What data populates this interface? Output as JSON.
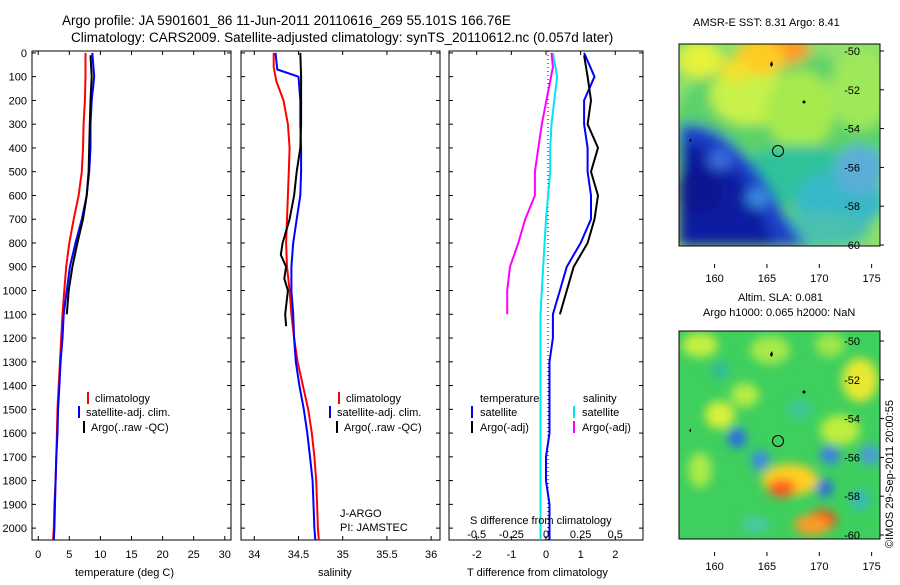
{
  "title_line1": "Argo profile: JA 5901601_86 11-Jun-2011 20110616_269 55.101S 166.76E",
  "title_line2": "Climatology: CARS2009. Satellite-adjusted climatology: synTS_20110612.nc (0.057d later)",
  "colors": {
    "climatology": "#ff0000",
    "satellite": "#0000ff",
    "argo": "#000000",
    "sat_sal": "#00e5ee",
    "argo_sal": "#ff00ff"
  },
  "depth_ticks": [
    "0",
    "100",
    "200",
    "300",
    "400",
    "500",
    "600",
    "700",
    "800",
    "900",
    "1000",
    "1100",
    "1200",
    "1300",
    "1400",
    "1500",
    "1600",
    "1700",
    "1800",
    "1900",
    "2000"
  ],
  "panel_temp": {
    "xlabel": "temperature (deg C)",
    "xticks": [
      "0",
      "5",
      "10",
      "15",
      "20",
      "25",
      "30"
    ],
    "legend": [
      "climatology",
      "satellite-adj. clim.",
      "Argo(..raw -QC)"
    ]
  },
  "panel_sal": {
    "xlabel": "salinity",
    "xticks": [
      "34",
      "34.5",
      "35",
      "35.5",
      "36"
    ],
    "legend": [
      "climatology",
      "satellite-adj. clim.",
      "Argo(..raw -QC)"
    ],
    "note1": "J-ARGO",
    "note2": "PI: JAMSTEC"
  },
  "panel_diff": {
    "xlabel_bottom": "T difference from climatology",
    "xlabel_top": "S difference from climatology",
    "xticks_T": [
      "-2",
      "-1",
      "0",
      "1",
      "2"
    ],
    "xticks_S": [
      "-0.5",
      "-0.25",
      "0",
      "0.25",
      "0.5"
    ],
    "legend_head_T": "temperature",
    "legend_head_S": "salinity",
    "legend_T": [
      "satellite",
      "Argo(-adj)"
    ],
    "legend_S": [
      "satellite",
      "Argo(-adj)"
    ]
  },
  "map_sst": {
    "title": "AMSR-E SST: 8.31  Argo: 8.41",
    "yticks": [
      "-50",
      "-52",
      "-54",
      "-56",
      "-58",
      "-60"
    ],
    "xticks": [
      "160",
      "165",
      "170",
      "175"
    ]
  },
  "map_sla": {
    "title1": "Altim. SLA: 0.081",
    "title2": "Argo h1000: 0.065 h2000: NaN",
    "yticks": [
      "-50",
      "-52",
      "-54",
      "-56",
      "-58",
      "-60"
    ],
    "xticks": [
      "160",
      "165",
      "170",
      "175"
    ]
  },
  "credit": "©IMOS 29-Sep-2011 20:00:55",
  "chart_data": [
    {
      "type": "line",
      "xlabel": "temperature (deg C)",
      "ylabel": "",
      "xlim": [
        -1,
        31
      ],
      "ylim": [
        2050,
        0
      ],
      "series": [
        {
          "name": "climatology",
          "color": "#ff0000",
          "points": [
            [
              7.6,
              0
            ],
            [
              7.6,
              100
            ],
            [
              7.5,
              200
            ],
            [
              7.3,
              300
            ],
            [
              7.2,
              400
            ],
            [
              7,
              500
            ],
            [
              6.5,
              600
            ],
            [
              5.7,
              700
            ],
            [
              5,
              800
            ],
            [
              4.5,
              900
            ],
            [
              4.2,
              1000
            ],
            [
              3.9,
              1100
            ],
            [
              3.7,
              1200
            ],
            [
              3.5,
              1300
            ],
            [
              3.3,
              1400
            ],
            [
              3.1,
              1500
            ],
            [
              3,
              1600
            ],
            [
              2.9,
              1700
            ],
            [
              2.8,
              1800
            ],
            [
              2.6,
              1900
            ],
            [
              2.5,
              2000
            ],
            [
              2.4,
              2050
            ]
          ]
        },
        {
          "name": "satellite-adj. clim.",
          "color": "#0000ff",
          "points": [
            [
              8.7,
              0
            ],
            [
              9,
              100
            ],
            [
              8.6,
              200
            ],
            [
              8.4,
              300
            ],
            [
              8.4,
              400
            ],
            [
              8.2,
              500
            ],
            [
              7.8,
              600
            ],
            [
              7,
              700
            ],
            [
              6,
              800
            ],
            [
              5.1,
              900
            ],
            [
              4.6,
              1000
            ],
            [
              4.1,
              1100
            ],
            [
              3.9,
              1200
            ],
            [
              3.6,
              1300
            ],
            [
              3.4,
              1400
            ],
            [
              3.2,
              1500
            ],
            [
              3.1,
              1600
            ],
            [
              2.9,
              1700
            ],
            [
              2.8,
              1800
            ],
            [
              2.7,
              1900
            ],
            [
              2.6,
              2000
            ],
            [
              2.5,
              2050
            ]
          ]
        },
        {
          "name": "Argo(..raw -QC)",
          "color": "#000000",
          "points": [
            [
              8.4,
              10
            ],
            [
              8.6,
              100
            ],
            [
              8.4,
              200
            ],
            [
              8.3,
              300
            ],
            [
              8.2,
              400
            ],
            [
              8.1,
              500
            ],
            [
              7.8,
              600
            ],
            [
              7.2,
              700
            ],
            [
              6.3,
              800
            ],
            [
              5.5,
              900
            ],
            [
              4.9,
              1000
            ],
            [
              4.6,
              1100
            ]
          ]
        }
      ]
    },
    {
      "type": "line",
      "xlabel": "salinity",
      "ylabel": "",
      "xlim": [
        33.85,
        36.1
      ],
      "ylim": [
        2050,
        0
      ],
      "series": [
        {
          "name": "climatology",
          "color": "#ff0000",
          "points": [
            [
              34.22,
              0
            ],
            [
              34.22,
              60
            ],
            [
              34.25,
              120
            ],
            [
              34.33,
              200
            ],
            [
              34.38,
              300
            ],
            [
              34.4,
              400
            ],
            [
              34.39,
              500
            ],
            [
              34.38,
              600
            ],
            [
              34.37,
              700
            ],
            [
              34.36,
              800
            ],
            [
              34.37,
              900
            ],
            [
              34.4,
              1000
            ],
            [
              34.42,
              1100
            ],
            [
              34.45,
              1200
            ],
            [
              34.49,
              1300
            ],
            [
              34.55,
              1400
            ],
            [
              34.61,
              1500
            ],
            [
              34.65,
              1600
            ],
            [
              34.68,
              1700
            ],
            [
              34.7,
              1800
            ],
            [
              34.71,
              1900
            ],
            [
              34.72,
              2000
            ],
            [
              34.73,
              2050
            ]
          ]
        },
        {
          "name": "satellite-adj. clim.",
          "color": "#0000ff",
          "points": [
            [
              34.24,
              0
            ],
            [
              34.26,
              70
            ],
            [
              34.5,
              100
            ],
            [
              34.52,
              200
            ],
            [
              34.52,
              300
            ],
            [
              34.53,
              400
            ],
            [
              34.53,
              500
            ],
            [
              34.52,
              600
            ],
            [
              34.48,
              700
            ],
            [
              34.44,
              800
            ],
            [
              34.42,
              900
            ],
            [
              34.42,
              1000
            ],
            [
              34.44,
              1100
            ],
            [
              34.45,
              1200
            ],
            [
              34.47,
              1300
            ],
            [
              34.51,
              1400
            ],
            [
              34.56,
              1500
            ],
            [
              34.6,
              1600
            ],
            [
              34.63,
              1700
            ],
            [
              34.66,
              1800
            ],
            [
              34.67,
              1900
            ],
            [
              34.68,
              2000
            ],
            [
              34.69,
              2050
            ]
          ]
        },
        {
          "name": "Argo(..raw -QC)",
          "color": "#000000",
          "points": [
            [
              34.52,
              0
            ],
            [
              34.53,
              100
            ],
            [
              34.53,
              200
            ],
            [
              34.53,
              300
            ],
            [
              34.52,
              400
            ],
            [
              34.48,
              500
            ],
            [
              34.45,
              600
            ],
            [
              34.4,
              700
            ],
            [
              34.32,
              800
            ],
            [
              34.3,
              850
            ],
            [
              34.36,
              900
            ],
            [
              34.34,
              950
            ],
            [
              34.38,
              1000
            ],
            [
              34.35,
              1100
            ],
            [
              34.36,
              1150
            ]
          ]
        }
      ]
    },
    {
      "type": "line",
      "xlabel": "T difference from climatology",
      "xlabel_top": "S difference from climatology",
      "ylabel": "",
      "xlim_T": [
        -2.8,
        2.8
      ],
      "xlim_S": [
        -0.7,
        0.7
      ],
      "ylim": [
        2050,
        0
      ],
      "series": [
        {
          "name": "satellite",
          "group": "temperature",
          "color": "#0000ff",
          "points": [
            [
              1.1,
              0
            ],
            [
              1.4,
              100
            ],
            [
              1.1,
              200
            ],
            [
              1.1,
              300
            ],
            [
              1.2,
              400
            ],
            [
              1.2,
              500
            ],
            [
              1.3,
              600
            ],
            [
              1.3,
              700
            ],
            [
              1,
              800
            ],
            [
              0.6,
              900
            ],
            [
              0.4,
              1000
            ],
            [
              0.2,
              1100
            ],
            [
              0.2,
              1200
            ],
            [
              0.1,
              1300
            ],
            [
              0.1,
              1400
            ],
            [
              0.1,
              1500
            ],
            [
              0.1,
              1600
            ],
            [
              0,
              1700
            ],
            [
              0,
              1800
            ],
            [
              0.1,
              1900
            ],
            [
              0.1,
              2000
            ],
            [
              0.1,
              2050
            ]
          ]
        },
        {
          "name": "Argo(-adj)",
          "group": "temperature",
          "color": "#000000",
          "points": [
            [
              1.1,
              10
            ],
            [
              1.2,
              100
            ],
            [
              1.3,
              200
            ],
            [
              1.2,
              300
            ],
            [
              1.5,
              400
            ],
            [
              1.3,
              500
            ],
            [
              1.5,
              600
            ],
            [
              1.4,
              700
            ],
            [
              1.2,
              800
            ],
            [
              0.8,
              900
            ],
            [
              0.6,
              1000
            ],
            [
              0.4,
              1100
            ]
          ]
        },
        {
          "name": "satellite",
          "group": "salinity",
          "color": "#00e5ee",
          "points": [
            [
              0.05,
              0
            ],
            [
              0.08,
              100
            ],
            [
              0.06,
              200
            ],
            [
              0.04,
              300
            ],
            [
              0.03,
              400
            ],
            [
              0.03,
              500
            ],
            [
              0,
              700
            ],
            [
              -0.02,
              900
            ],
            [
              -0.03,
              1000
            ],
            [
              -0.04,
              1100
            ],
            [
              -0.04,
              1300
            ],
            [
              -0.04,
              1500
            ],
            [
              -0.04,
              1700
            ],
            [
              -0.04,
              1900
            ],
            [
              -0.04,
              2050
            ]
          ]
        },
        {
          "name": "Argo(-adj)",
          "group": "salinity",
          "color": "#ff00ff",
          "points": [
            [
              0.04,
              0
            ],
            [
              0.05,
              60
            ],
            [
              -0.03,
              300
            ],
            [
              -0.08,
              500
            ],
            [
              -0.08,
              600
            ],
            [
              -0.15,
              700
            ],
            [
              -0.2,
              800
            ],
            [
              -0.26,
              900
            ],
            [
              -0.28,
              1000
            ],
            [
              -0.28,
              1100
            ]
          ]
        }
      ]
    }
  ]
}
